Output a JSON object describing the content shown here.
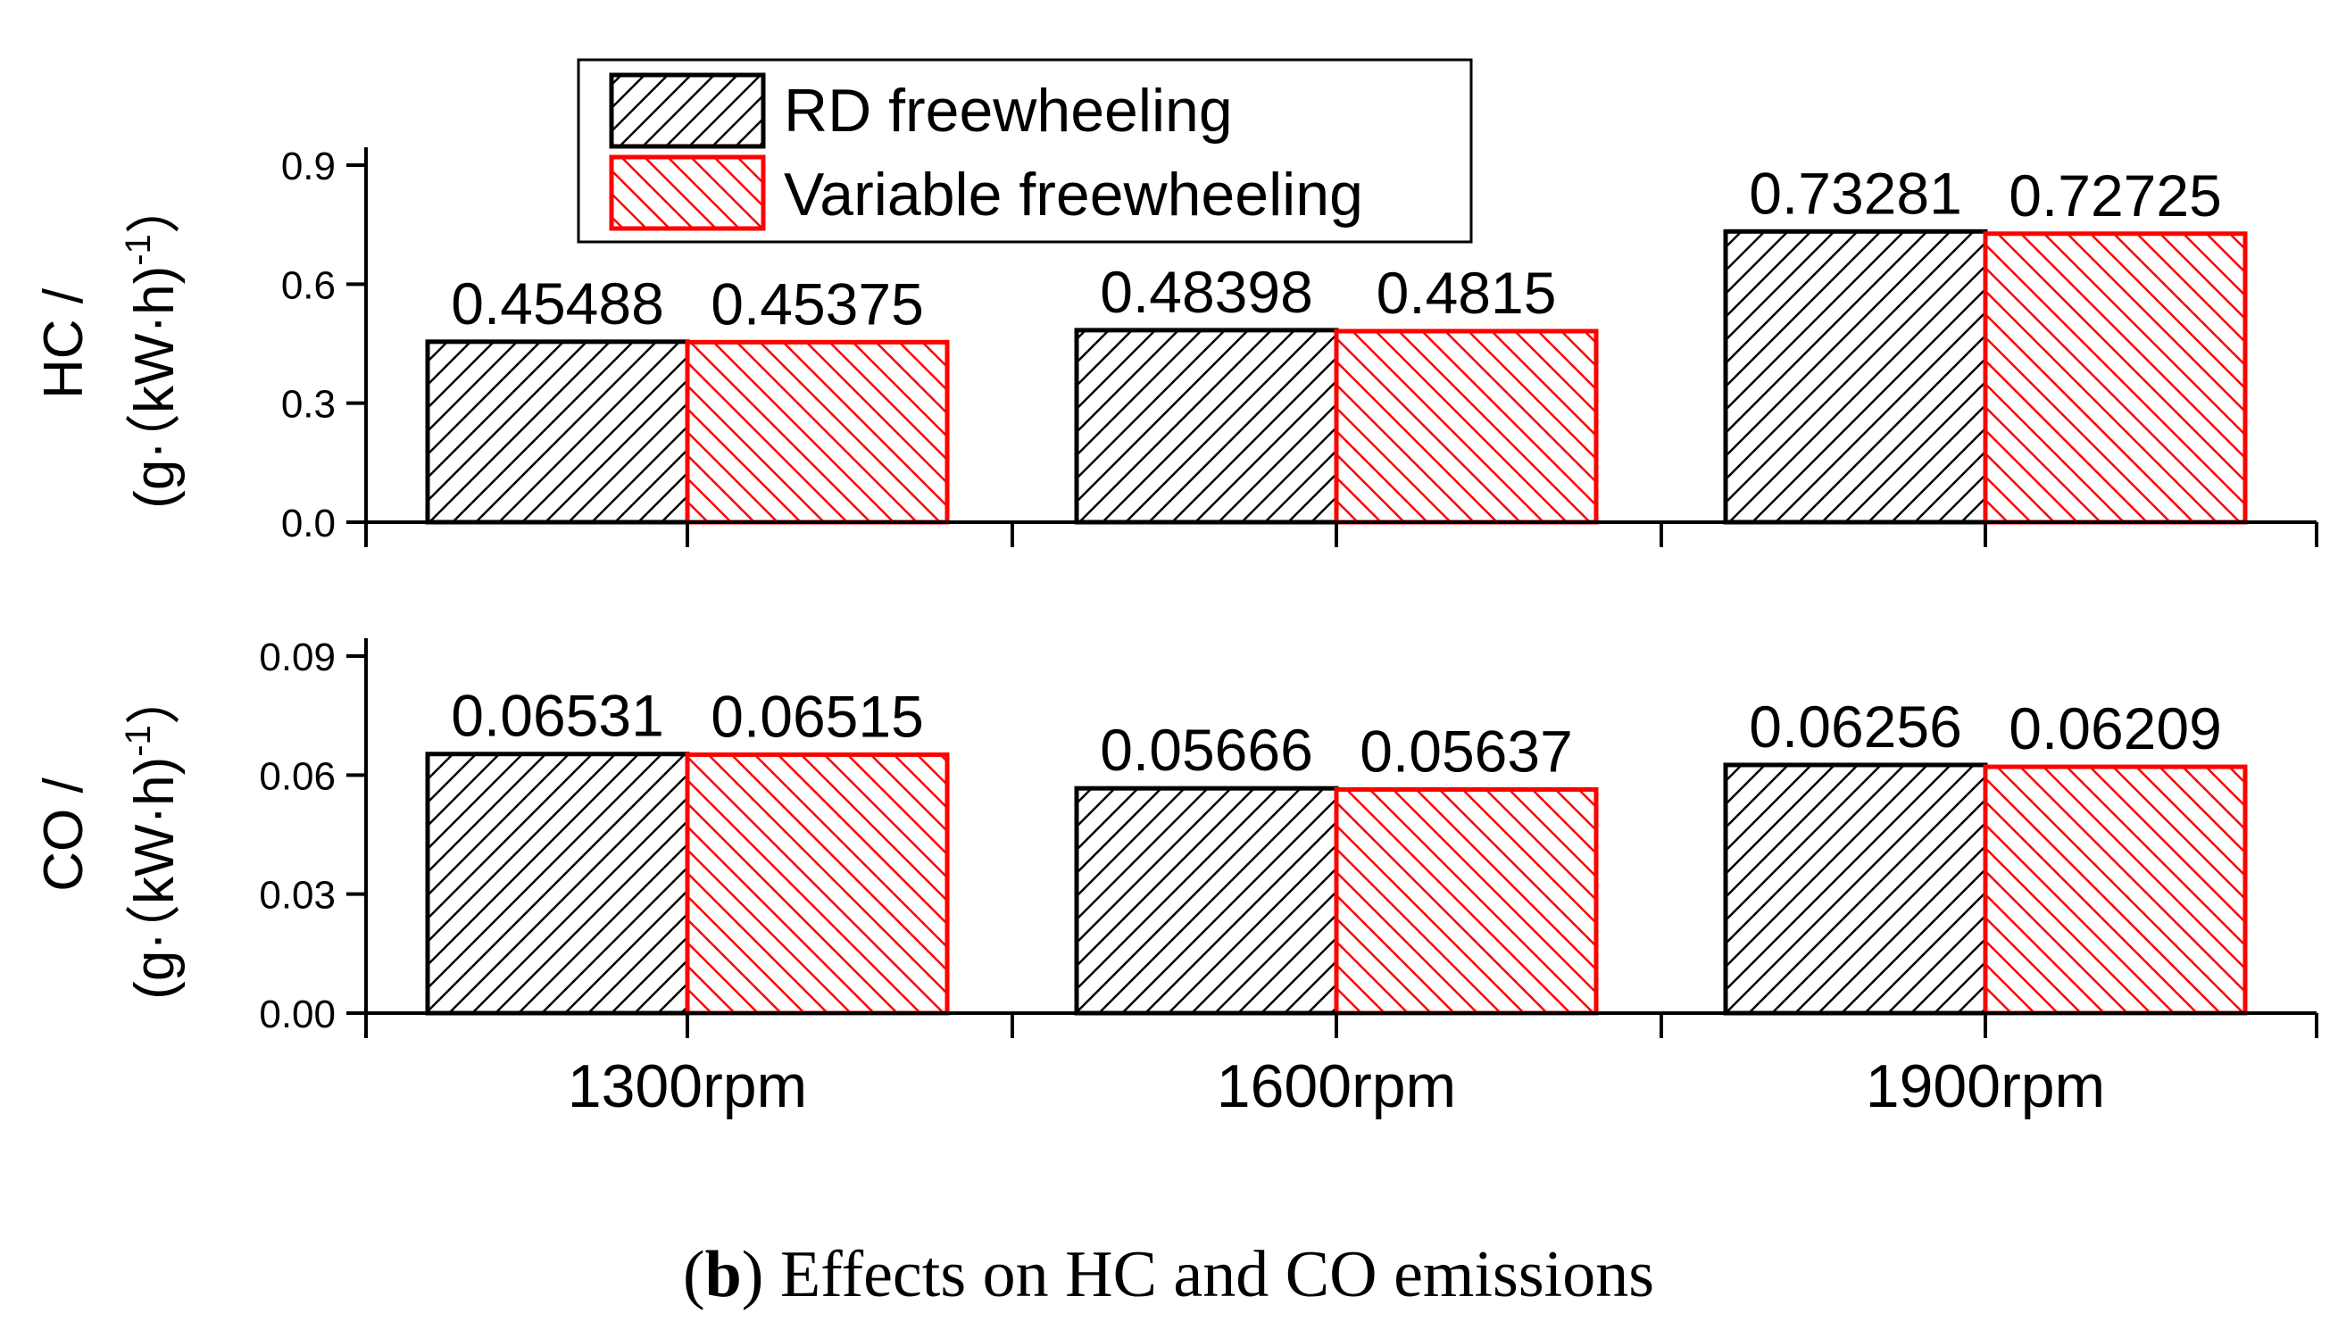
{
  "chart_data": {
    "type": "bar",
    "categories": [
      "1300rpm",
      "1600rpm",
      "1900rpm"
    ],
    "legend": {
      "placement": "top-left",
      "entries": [
        "RD freewheeling",
        "Variable freewheeling"
      ]
    },
    "colors": {
      "rd": "#000000",
      "variable": "#ff0000"
    },
    "panels": [
      {
        "ylabel_line1": "HC /",
        "ylabel_line2": "(g·（kW·h)",
        "ylabel_sup": "-1",
        "ylabel_close": "）",
        "ylim": [
          0,
          0.9
        ],
        "yticks": [
          0.0,
          0.3,
          0.6,
          0.9
        ],
        "ytick_labels": [
          "0.0",
          "0.3",
          "0.6",
          "0.9"
        ],
        "series": [
          {
            "name": "RD freewheeling",
            "values": [
              0.45488,
              0.48398,
              0.73281
            ],
            "labels": [
              "0.45488",
              "0.48398",
              "0.73281"
            ]
          },
          {
            "name": "Variable freewheeling",
            "values": [
              0.45375,
              0.4815,
              0.72725
            ],
            "labels": [
              "0.45375",
              "0.4815",
              "0.72725"
            ]
          }
        ]
      },
      {
        "ylabel_line1": "CO /",
        "ylabel_line2": "(g·（kW·h)",
        "ylabel_sup": "-1",
        "ylabel_close": "）",
        "ylim": [
          0,
          0.09
        ],
        "yticks": [
          0.0,
          0.03,
          0.06,
          0.09
        ],
        "ytick_labels": [
          "0.00",
          "0.03",
          "0.06",
          "0.09"
        ],
        "series": [
          {
            "name": "RD freewheeling",
            "values": [
              0.06531,
              0.05666,
              0.06256
            ],
            "labels": [
              "0.06531",
              "0.05666",
              "0.06256"
            ]
          },
          {
            "name": "Variable freewheeling",
            "values": [
              0.06515,
              0.05637,
              0.06209
            ],
            "labels": [
              "0.06515",
              "0.05637",
              "0.06209"
            ]
          }
        ]
      }
    ]
  },
  "caption": {
    "open": "(",
    "letter": "b",
    "rest": ") Effects on HC and CO emissions"
  }
}
